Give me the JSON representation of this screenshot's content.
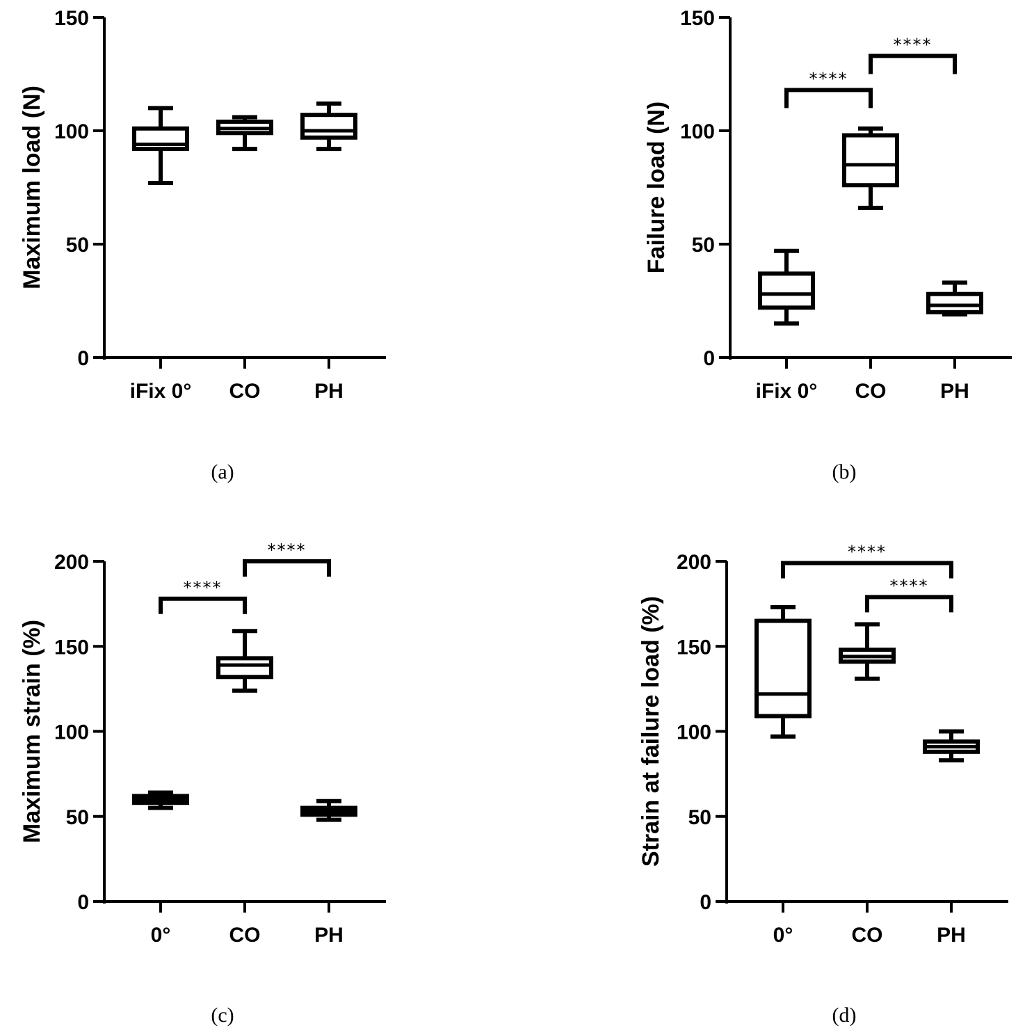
{
  "chart_data": [
    {
      "type": "box",
      "panel": "(a)",
      "ylabel": "Maximum load (N)",
      "ylim": [
        0,
        150
      ],
      "yticks": [
        0,
        50,
        100,
        150
      ],
      "categories": [
        "iFix 0°",
        "CO",
        "PH"
      ],
      "boxes": [
        {
          "category": "iFix 0°",
          "min": 77,
          "q1": 92,
          "median": 94,
          "q3": 101,
          "max": 110
        },
        {
          "category": "CO",
          "min": 92,
          "q1": 99,
          "median": 101,
          "q3": 104,
          "max": 106
        },
        {
          "category": "PH",
          "min": 92,
          "q1": 97,
          "median": 100,
          "q3": 107,
          "max": 112
        }
      ],
      "significance": []
    },
    {
      "type": "box",
      "panel": "(b)",
      "ylabel": "Failure load (N)",
      "ylim": [
        0,
        150
      ],
      "yticks": [
        0,
        50,
        100,
        150
      ],
      "categories": [
        "iFix 0°",
        "CO",
        "PH"
      ],
      "boxes": [
        {
          "category": "iFix 0°",
          "min": 15,
          "q1": 22,
          "median": 28,
          "q3": 37,
          "max": 47
        },
        {
          "category": "CO",
          "min": 66,
          "q1": 76,
          "median": 85,
          "q3": 98,
          "max": 101
        },
        {
          "category": "PH",
          "min": 19,
          "q1": 20,
          "median": 23,
          "q3": 28,
          "max": 33
        }
      ],
      "significance": [
        {
          "from": 0,
          "to": 1,
          "y": 118,
          "drop": 8,
          "label": "****"
        },
        {
          "from": 1,
          "to": 2,
          "y": 133,
          "drop": 8,
          "label": "****"
        }
      ]
    },
    {
      "type": "box",
      "panel": "(c)",
      "ylabel": "Maximum strain (%)",
      "ylim": [
        0,
        200
      ],
      "yticks": [
        0,
        50,
        100,
        150,
        200
      ],
      "categories": [
        "0°",
        "CO",
        "PH"
      ],
      "boxes": [
        {
          "category": "0°",
          "min": 55,
          "q1": 58,
          "median": 60,
          "q3": 62,
          "max": 64
        },
        {
          "category": "CO",
          "min": 124,
          "q1": 132,
          "median": 139,
          "q3": 143,
          "max": 159
        },
        {
          "category": "PH",
          "min": 48,
          "q1": 51,
          "median": 53,
          "q3": 55,
          "max": 59
        }
      ],
      "significance": [
        {
          "from": 0,
          "to": 1,
          "y": 178,
          "drop": 9,
          "label": "****"
        },
        {
          "from": 1,
          "to": 2,
          "y": 200,
          "drop": 9,
          "label": "****"
        }
      ]
    },
    {
      "type": "box",
      "panel": "(d)",
      "ylabel": "Strain at failure load (%)",
      "ylim": [
        0,
        200
      ],
      "yticks": [
        0,
        50,
        100,
        150,
        200
      ],
      "categories": [
        "0°",
        "CO",
        "PH"
      ],
      "boxes": [
        {
          "category": "0°",
          "min": 97,
          "q1": 109,
          "median": 122,
          "q3": 165,
          "max": 173
        },
        {
          "category": "CO",
          "min": 131,
          "q1": 141,
          "median": 144,
          "q3": 148,
          "max": 163
        },
        {
          "category": "PH",
          "min": 83,
          "q1": 88,
          "median": 91,
          "q3": 94,
          "max": 100
        }
      ],
      "significance": [
        {
          "from": 0,
          "to": 2,
          "y": 199,
          "drop": 9,
          "label": "****"
        },
        {
          "from": 1,
          "to": 2,
          "y": 179,
          "drop": 9,
          "label": "****"
        }
      ]
    }
  ]
}
